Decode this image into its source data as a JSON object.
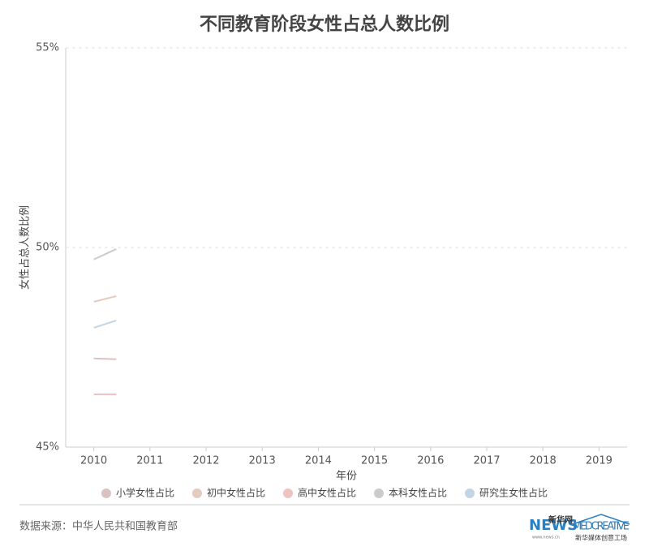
{
  "chart_data": {
    "type": "line",
    "title": "不同教育阶段女性占总人数比例",
    "x_label": "年份",
    "y_label": "女性占总人数比例",
    "xlim": [
      2009.5,
      2019.5
    ],
    "xticks": [
      2010,
      2011,
      2012,
      2013,
      2014,
      2015,
      2016,
      2017,
      2018,
      2019
    ],
    "ylim": [
      45,
      55
    ],
    "yticks": [
      {
        "value": 45,
        "label": "45%"
      },
      {
        "value": 50,
        "label": "50%"
      },
      {
        "value": 55,
        "label": "55%"
      }
    ],
    "grid": true,
    "legend": "bottom",
    "x": [
      2010,
      2010.4
    ],
    "series": [
      {
        "name": "小学女性占比",
        "color": "#d9c3c2",
        "values": [
          47.22,
          47.2
        ]
      },
      {
        "name": "初中女性占比",
        "color": "#e4cbbf",
        "values": [
          48.64,
          48.78
        ]
      },
      {
        "name": "高中女性占比",
        "color": "#efc3c0",
        "values": [
          46.32,
          46.32
        ]
      },
      {
        "name": "本科女性占比",
        "color": "#cbcbcb",
        "values": [
          49.7,
          49.96
        ]
      },
      {
        "name": "研究生女性占比",
        "color": "#c3d5e4",
        "values": [
          47.99,
          48.17
        ]
      }
    ],
    "source": "数据来源：中华人民共和国教育部",
    "logos": [
      "新华网",
      "NEWS",
      "www.news.cn",
      "MEDCREATIVE",
      "新华媒体创意工场"
    ]
  }
}
